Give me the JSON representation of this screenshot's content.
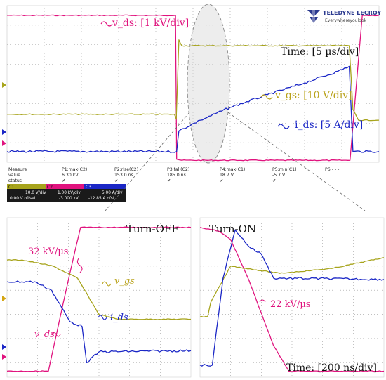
{
  "brand": {
    "logo_text": "TELEDYNE LECROY",
    "logo_tagline": "Everywhereyoulook",
    "logo_color": "#2b3a8f"
  },
  "colors": {
    "vds": "#e0137e",
    "vgs": "#a7a41c",
    "ids": "#1b27c6",
    "grid": "#9a9a9a",
    "ellipse": "#8a8a8a"
  },
  "annotations": {
    "vds_scale": "v_ds: [1 kV/div]",
    "vgs_scale": "v_gs: [10 V/div]",
    "ids_scale": "i_ds: [5 A/div]",
    "time_top": "Time: [5 µs/div]",
    "turn_off": "Turn-OFF",
    "turn_on": "Turn-ON",
    "slew_off": "32 kV/µs",
    "slew_on": "22 kV/µs",
    "vgs_left": "v_gs",
    "ids_left": "i_ds",
    "vds_left": "v_ds",
    "time_bottom": "Time: [200 ns/div]"
  },
  "measure_table": {
    "row_labels": [
      "Measure",
      "value",
      "status"
    ],
    "columns": [
      {
        "name": "P1:max(C2)",
        "value": "6.30 kV",
        "status": "✔"
      },
      {
        "name": "P2:rise(C2)",
        "value": "153.0 ns",
        "status": "✔"
      },
      {
        "name": "P3:fall(C2)",
        "value": "185.0 ns",
        "status": "✔"
      },
      {
        "name": "P4:max(C1)",
        "value": "18.7 V",
        "status": "✔"
      },
      {
        "name": "P5:min(C1)",
        "value": "-5.7 V",
        "status": "✔"
      },
      {
        "name": "P6:- - -",
        "value": "",
        "status": ""
      }
    ]
  },
  "channels": [
    {
      "id": "C1",
      "scale": "10.0 V/div",
      "offset": "0.00 V offset",
      "color": "#a7a41c"
    },
    {
      "id": "C2",
      "scale": "1.00 kV/div",
      "offset": "-3.000 kV",
      "color": "#e0137e"
    },
    {
      "id": "C3",
      "scale": "5.00 A/div",
      "offset": "-12.85 A ofst",
      "color": "#1b27c6"
    }
  ],
  "chart_data": [
    {
      "type": "line",
      "panel": "overview",
      "x_divisions": 10,
      "y_divisions": 8,
      "x_unit_per_div": "5 µs/div",
      "series": [
        {
          "name": "v_ds",
          "scale": "1 kV/div",
          "x_div": [
            0,
            4.53,
            4.56,
            4.7,
            6.75,
            9.22,
            9.55,
            10
          ],
          "y_div": [
            7.5,
            7.5,
            0.15,
            0.1,
            0.1,
            0.1,
            7.5,
            7.5
          ]
        },
        {
          "name": "v_gs",
          "scale": "10 V/div",
          "x_div": [
            0,
            4.5,
            4.55,
            4.62,
            4.7,
            9.2,
            9.3,
            9.45,
            10
          ],
          "y_div": [
            2.45,
            2.45,
            2.2,
            6.25,
            5.95,
            5.95,
            2.7,
            2.15,
            2.15
          ]
        },
        {
          "name": "i_ds",
          "scale": "5 A/div",
          "x_div": [
            0,
            4.56,
            4.62,
            5.2,
            6.0,
            7.0,
            8.0,
            8.9,
            9.2,
            9.3,
            10
          ],
          "y_div": [
            0.55,
            0.55,
            1.6,
            2.15,
            2.8,
            3.45,
            4.05,
            4.65,
            4.9,
            0.55,
            0.55
          ]
        }
      ]
    },
    {
      "type": "line",
      "panel": "turn-off zoom",
      "x_divisions": 6,
      "y_divisions": 6.6,
      "x_unit_per_div": "200 ns/div",
      "series": [
        {
          "name": "v_ds",
          "x_div": [
            0,
            1.35,
            2.05,
            2.4,
            2.6,
            6
          ],
          "y_div": [
            0.25,
            0.25,
            4.3,
            6.2,
            6.2,
            6.2
          ]
        },
        {
          "name": "v_gs",
          "x_div": [
            0,
            0.5,
            1.5,
            2.3,
            3.0,
            3.6,
            6
          ],
          "y_div": [
            4.85,
            4.85,
            4.6,
            4.1,
            2.6,
            2.4,
            2.4
          ]
        },
        {
          "name": "i_ds",
          "x_div": [
            0,
            0.9,
            1.45,
            2.05,
            2.45,
            2.6,
            3.0,
            6
          ],
          "y_div": [
            3.95,
            3.95,
            3.6,
            2.3,
            2.1,
            0.6,
            1.05,
            1.1
          ]
        }
      ]
    },
    {
      "type": "line",
      "panel": "turn-on zoom",
      "x_divisions": 6,
      "y_divisions": 6.6,
      "x_unit_per_div": "200 ns/div",
      "series": [
        {
          "name": "v_ds",
          "x_div": [
            0,
            0.6,
            1.0,
            1.6,
            2.4,
            2.9,
            6
          ],
          "y_div": [
            6.2,
            6.05,
            5.7,
            4.0,
            1.3,
            0.25,
            0.25
          ]
        },
        {
          "name": "v_gs",
          "x_div": [
            0,
            0.25,
            0.35,
            1.0,
            2.6,
            4.3,
            6
          ],
          "y_div": [
            2.5,
            2.5,
            3.1,
            4.6,
            4.3,
            4.5,
            4.95
          ]
        },
        {
          "name": "i_ds",
          "x_div": [
            0,
            0.4,
            0.75,
            1.15,
            1.6,
            2.0,
            2.4,
            6
          ],
          "y_div": [
            0.5,
            0.5,
            4.1,
            6.1,
            5.4,
            5.1,
            4.1,
            4.05
          ]
        }
      ]
    }
  ]
}
